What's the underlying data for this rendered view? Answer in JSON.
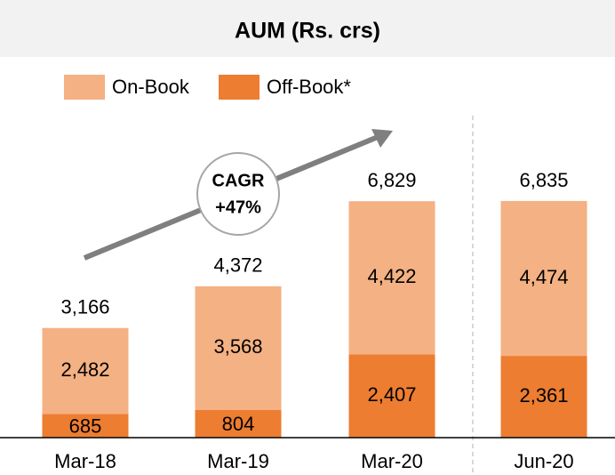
{
  "chart_data": {
    "type": "stacked_bar",
    "title": "AUM (Rs. crs)",
    "categories": [
      "Mar-18",
      "Mar-19",
      "Mar-20",
      "Jun-20"
    ],
    "series": [
      {
        "name": "On-Book",
        "color": "#f4b183",
        "values": [
          2482,
          3568,
          4422,
          4474
        ],
        "value_labels": [
          "2,482",
          "3,568",
          "4,422",
          "4,474"
        ]
      },
      {
        "name": "Off-Book*",
        "color": "#ed7d31",
        "values": [
          685,
          804,
          2407,
          2361
        ],
        "value_labels": [
          "685",
          "804",
          "2,407",
          "2,361"
        ]
      }
    ],
    "totals": [
      3166,
      4372,
      6829,
      6835
    ],
    "total_labels": [
      "3,166",
      "4,372",
      "6,829",
      "6,835"
    ],
    "annotation": [
      "CAGR",
      "+47%"
    ],
    "ylim": [
      0,
      9300
    ]
  }
}
